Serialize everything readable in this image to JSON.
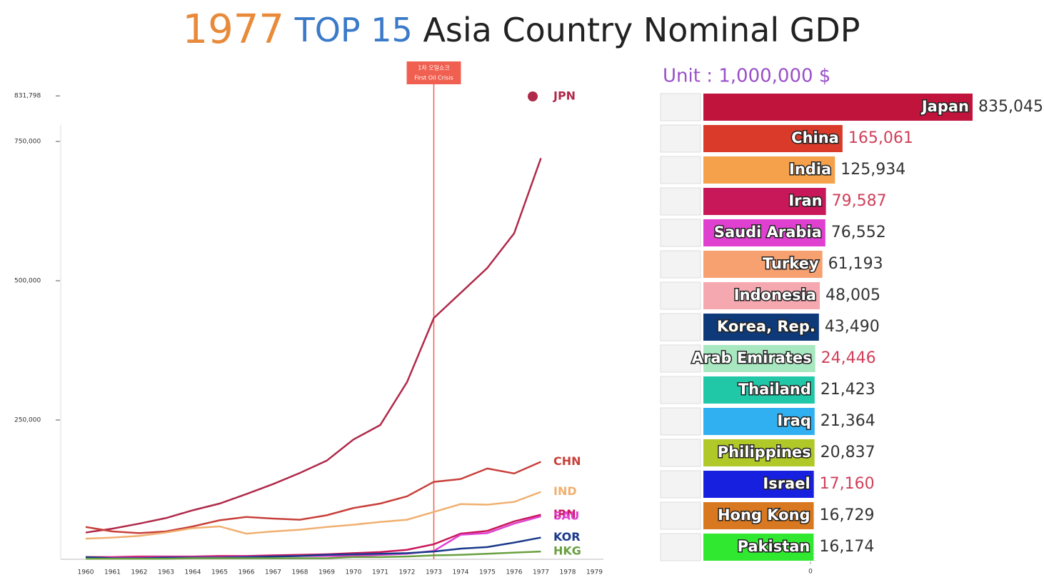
{
  "chart_data": [
    {
      "type": "line",
      "title_year": "1977",
      "title_top": "TOP 15",
      "title_rest": "Asia Country Nominal GDP",
      "categories": [
        "1960",
        "1961",
        "1962",
        "1963",
        "1964",
        "1965",
        "1966",
        "1967",
        "1968",
        "1969",
        "1970",
        "1971",
        "1972",
        "1973",
        "1974",
        "1975",
        "1976",
        "1977",
        "1978",
        "1979"
      ],
      "series": [
        {
          "name": "JPN",
          "color": "#b02a4a",
          "values": [
            48000,
            55000,
            64000,
            74000,
            88000,
            100000,
            117000,
            135000,
            155000,
            177000,
            215000,
            241000,
            318000,
            433000,
            478000,
            523000,
            585000,
            720000,
            null,
            null
          ]
        },
        {
          "name": "CHN",
          "color": "#c8403a",
          "values": [
            58000,
            50000,
            47000,
            50000,
            59000,
            70000,
            76000,
            73000,
            71000,
            79000,
            92000,
            100000,
            113000,
            139000,
            144000,
            163000,
            154000,
            175000,
            null,
            null
          ]
        },
        {
          "name": "IND",
          "color": "#f0b070",
          "values": [
            37000,
            39000,
            42000,
            48000,
            56000,
            59000,
            46000,
            50000,
            53000,
            58000,
            62000,
            67000,
            71000,
            85000,
            99000,
            98000,
            103000,
            121000,
            null,
            null
          ]
        },
        {
          "name": "IRN",
          "color": "#c8185a",
          "values": [
            4000,
            4000,
            5000,
            5000,
            5000,
            6000,
            6000,
            7000,
            8000,
            9000,
            11000,
            13000,
            17000,
            27000,
            46000,
            51000,
            68000,
            80000,
            null,
            null
          ]
        },
        {
          "name": "SAU",
          "color": "#e040d0",
          "values": [
            3000,
            3000,
            3000,
            4000,
            4000,
            4000,
            5000,
            5000,
            6000,
            6000,
            6000,
            8000,
            10000,
            15000,
            44000,
            47000,
            64000,
            77000,
            null,
            null
          ]
        },
        {
          "name": "KOR",
          "color": "#1a3a8a",
          "values": [
            4000,
            2000,
            2000,
            3000,
            3000,
            3000,
            4000,
            5000,
            6000,
            8000,
            9000,
            10000,
            11000,
            14000,
            19000,
            22000,
            30000,
            39000,
            null,
            null
          ]
        },
        {
          "name": "HKG",
          "color": "#6aa040",
          "values": [
            1000,
            1000,
            1000,
            1000,
            2000,
            2000,
            2000,
            2000,
            2000,
            2000,
            4000,
            4000,
            5000,
            7000,
            8000,
            10000,
            12000,
            14000,
            null,
            null
          ]
        }
      ],
      "ylim": [
        0,
        850000
      ],
      "yticks": [
        {
          "value": 250000,
          "label": "250,000"
        },
        {
          "value": 500000,
          "label": "500,000"
        },
        {
          "value": 750000,
          "label": "750,000"
        },
        {
          "value": 831798,
          "label": "831,798"
        }
      ],
      "annotation": {
        "x": "1973",
        "label_ko": "1차 오일쇼크",
        "label": "First Oil Crisis",
        "color": "#f06050"
      }
    },
    {
      "type": "hbar",
      "unit_label": "Unit : 1,000,000 $",
      "categories": [
        "Japan",
        "China",
        "India",
        "Iran",
        "Saudi Arabia",
        "Turkey",
        "Indonesia",
        "Korea, Rep.",
        "Arab Emirates",
        "Thailand",
        "Iraq",
        "Philippines",
        "Israel",
        "Hong Kong",
        "Pakistan"
      ],
      "values": [
        835045,
        165061,
        125934,
        79587,
        76552,
        61193,
        48005,
        43490,
        24446,
        21423,
        21364,
        20837,
        17160,
        16729,
        16174
      ],
      "value_labels": [
        "835,045",
        "165,061",
        "125,934",
        "79,587",
        "76,552",
        "61,193",
        "48,005",
        "43,490",
        "24,446",
        "21,423",
        "21,364",
        "20,837",
        "17,160",
        "16,729",
        "16,174"
      ],
      "colors": [
        "#c0143c",
        "#d93a2a",
        "#f5a04a",
        "#c8185a",
        "#e040d0",
        "#f7a070",
        "#f5a8b0",
        "#0e3a7a",
        "#a8e8c0",
        "#20c8a8",
        "#30b0f0",
        "#b0c828",
        "#1820e0",
        "#d87820",
        "#30e830"
      ],
      "value_label_colors": [
        "#333333",
        "#d0405a",
        "#333333",
        "#d0405a",
        "#333333",
        "#333333",
        "#333333",
        "#333333",
        "#d0405a",
        "#333333",
        "#333333",
        "#333333",
        "#d0405a",
        "#333333",
        "#333333"
      ],
      "xlim": [
        0,
        835045
      ],
      "xticks": [
        0
      ]
    }
  ]
}
